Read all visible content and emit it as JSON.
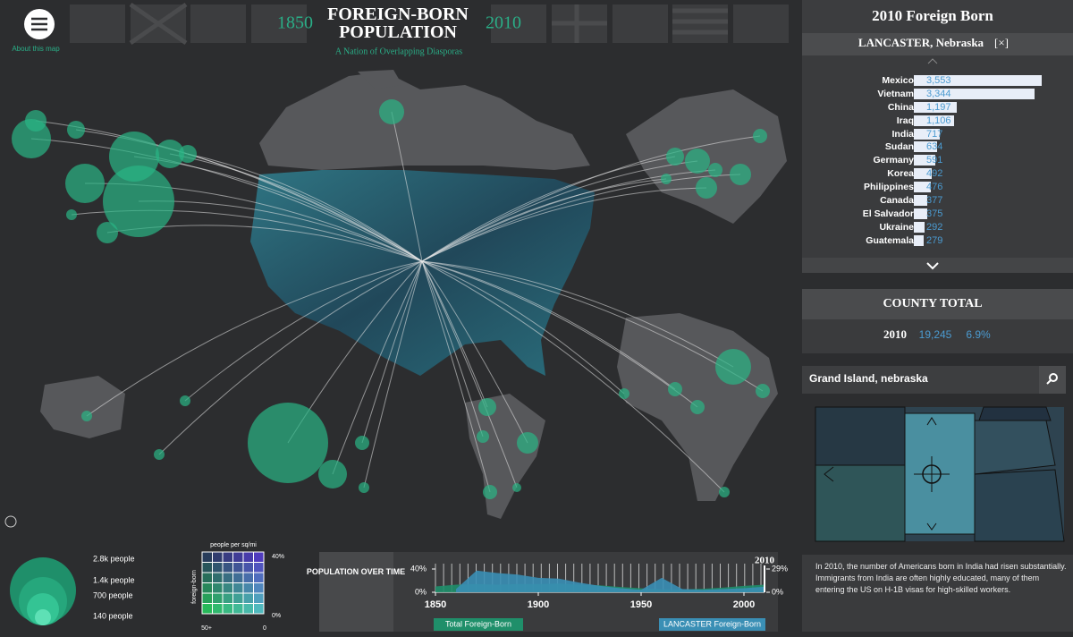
{
  "header": {
    "title": "FOREIGN-BORN POPULATION",
    "subtitle": "A Nation of Overlapping Diasporas",
    "year_start": "1850",
    "year_end": "2010",
    "about": "About this map"
  },
  "sidebar": {
    "title": "2010 Foreign Born",
    "county": "LANCASTER, Nebraska",
    "close": "[×]",
    "rows": [
      {
        "name": "Mexico",
        "value": 3553,
        "label": "3,553"
      },
      {
        "name": "Vietnam",
        "value": 3344,
        "label": "3,344"
      },
      {
        "name": "China",
        "value": 1197,
        "label": "1,197"
      },
      {
        "name": "Iraq",
        "value": 1106,
        "label": "1,106"
      },
      {
        "name": "India",
        "value": 717,
        "label": "717"
      },
      {
        "name": "Sudan",
        "value": 634,
        "label": "634"
      },
      {
        "name": "Germany",
        "value": 591,
        "label": "591"
      },
      {
        "name": "Korea",
        "value": 492,
        "label": "492"
      },
      {
        "name": "Philippines",
        "value": 476,
        "label": "476"
      },
      {
        "name": "Canada",
        "value": 377,
        "label": "377"
      },
      {
        "name": "El Salvador",
        "value": 375,
        "label": "375"
      },
      {
        "name": "Ukraine",
        "value": 292,
        "label": "292"
      },
      {
        "name": "Guatemala",
        "value": 279,
        "label": "279"
      }
    ]
  },
  "county_total": {
    "title": "COUNTY TOTAL",
    "year": "2010",
    "total": "19,245",
    "percent": "6.9%"
  },
  "search": {
    "query": "Grand Island, nebraska"
  },
  "description": "In 2010, the number of Americans born in India had risen substantially. Immigrants from India are often highly educated, many of them entering the US on H-1B visas for high-skilled workers.",
  "legend": {
    "sizes": [
      "2.8k people",
      "1.4k people",
      "700 people",
      "140 people"
    ],
    "density_title": "people per sq/mi",
    "density_top": "40%",
    "density_bottom": "0%",
    "density_axis": "foreign-born",
    "density_left": "50+",
    "density_right": "0"
  },
  "timeline": {
    "title": "POPULATION OVER TIME",
    "marker": "2010",
    "x": [
      1850,
      1860,
      1870,
      1880,
      1890,
      1900,
      1910,
      1920,
      1930,
      1940,
      1950,
      1960,
      1970,
      1980,
      1990,
      2000,
      2010
    ],
    "xlim": [
      1850,
      2010
    ],
    "xticks": [
      1850,
      1900,
      1950,
      2000
    ],
    "ylim": [
      0,
      40
    ],
    "yticks": [
      {
        "value": 40,
        "label": "40%"
      },
      {
        "value": 0,
        "label": "0%"
      }
    ],
    "y2lim": [
      0,
      29
    ],
    "y2ticks": [
      {
        "value": 29,
        "label": "29%"
      },
      {
        "value": 0,
        "label": "0%"
      }
    ],
    "series": [
      {
        "name": "Total Foreign-Born",
        "color": "#1f8f6a",
        "values": [
          10,
          13,
          14,
          13,
          14,
          14,
          15,
          13,
          12,
          9,
          7,
          5,
          5,
          6,
          8,
          11,
          13
        ]
      },
      {
        "name": "LANCASTER Foreign-Born",
        "color": "#3a8fb5",
        "axis": "y2",
        "values": [
          null,
          4,
          27,
          24,
          22,
          18,
          17,
          12,
          8,
          5,
          3,
          18,
          4,
          3,
          4,
          5,
          7
        ]
      }
    ]
  }
}
